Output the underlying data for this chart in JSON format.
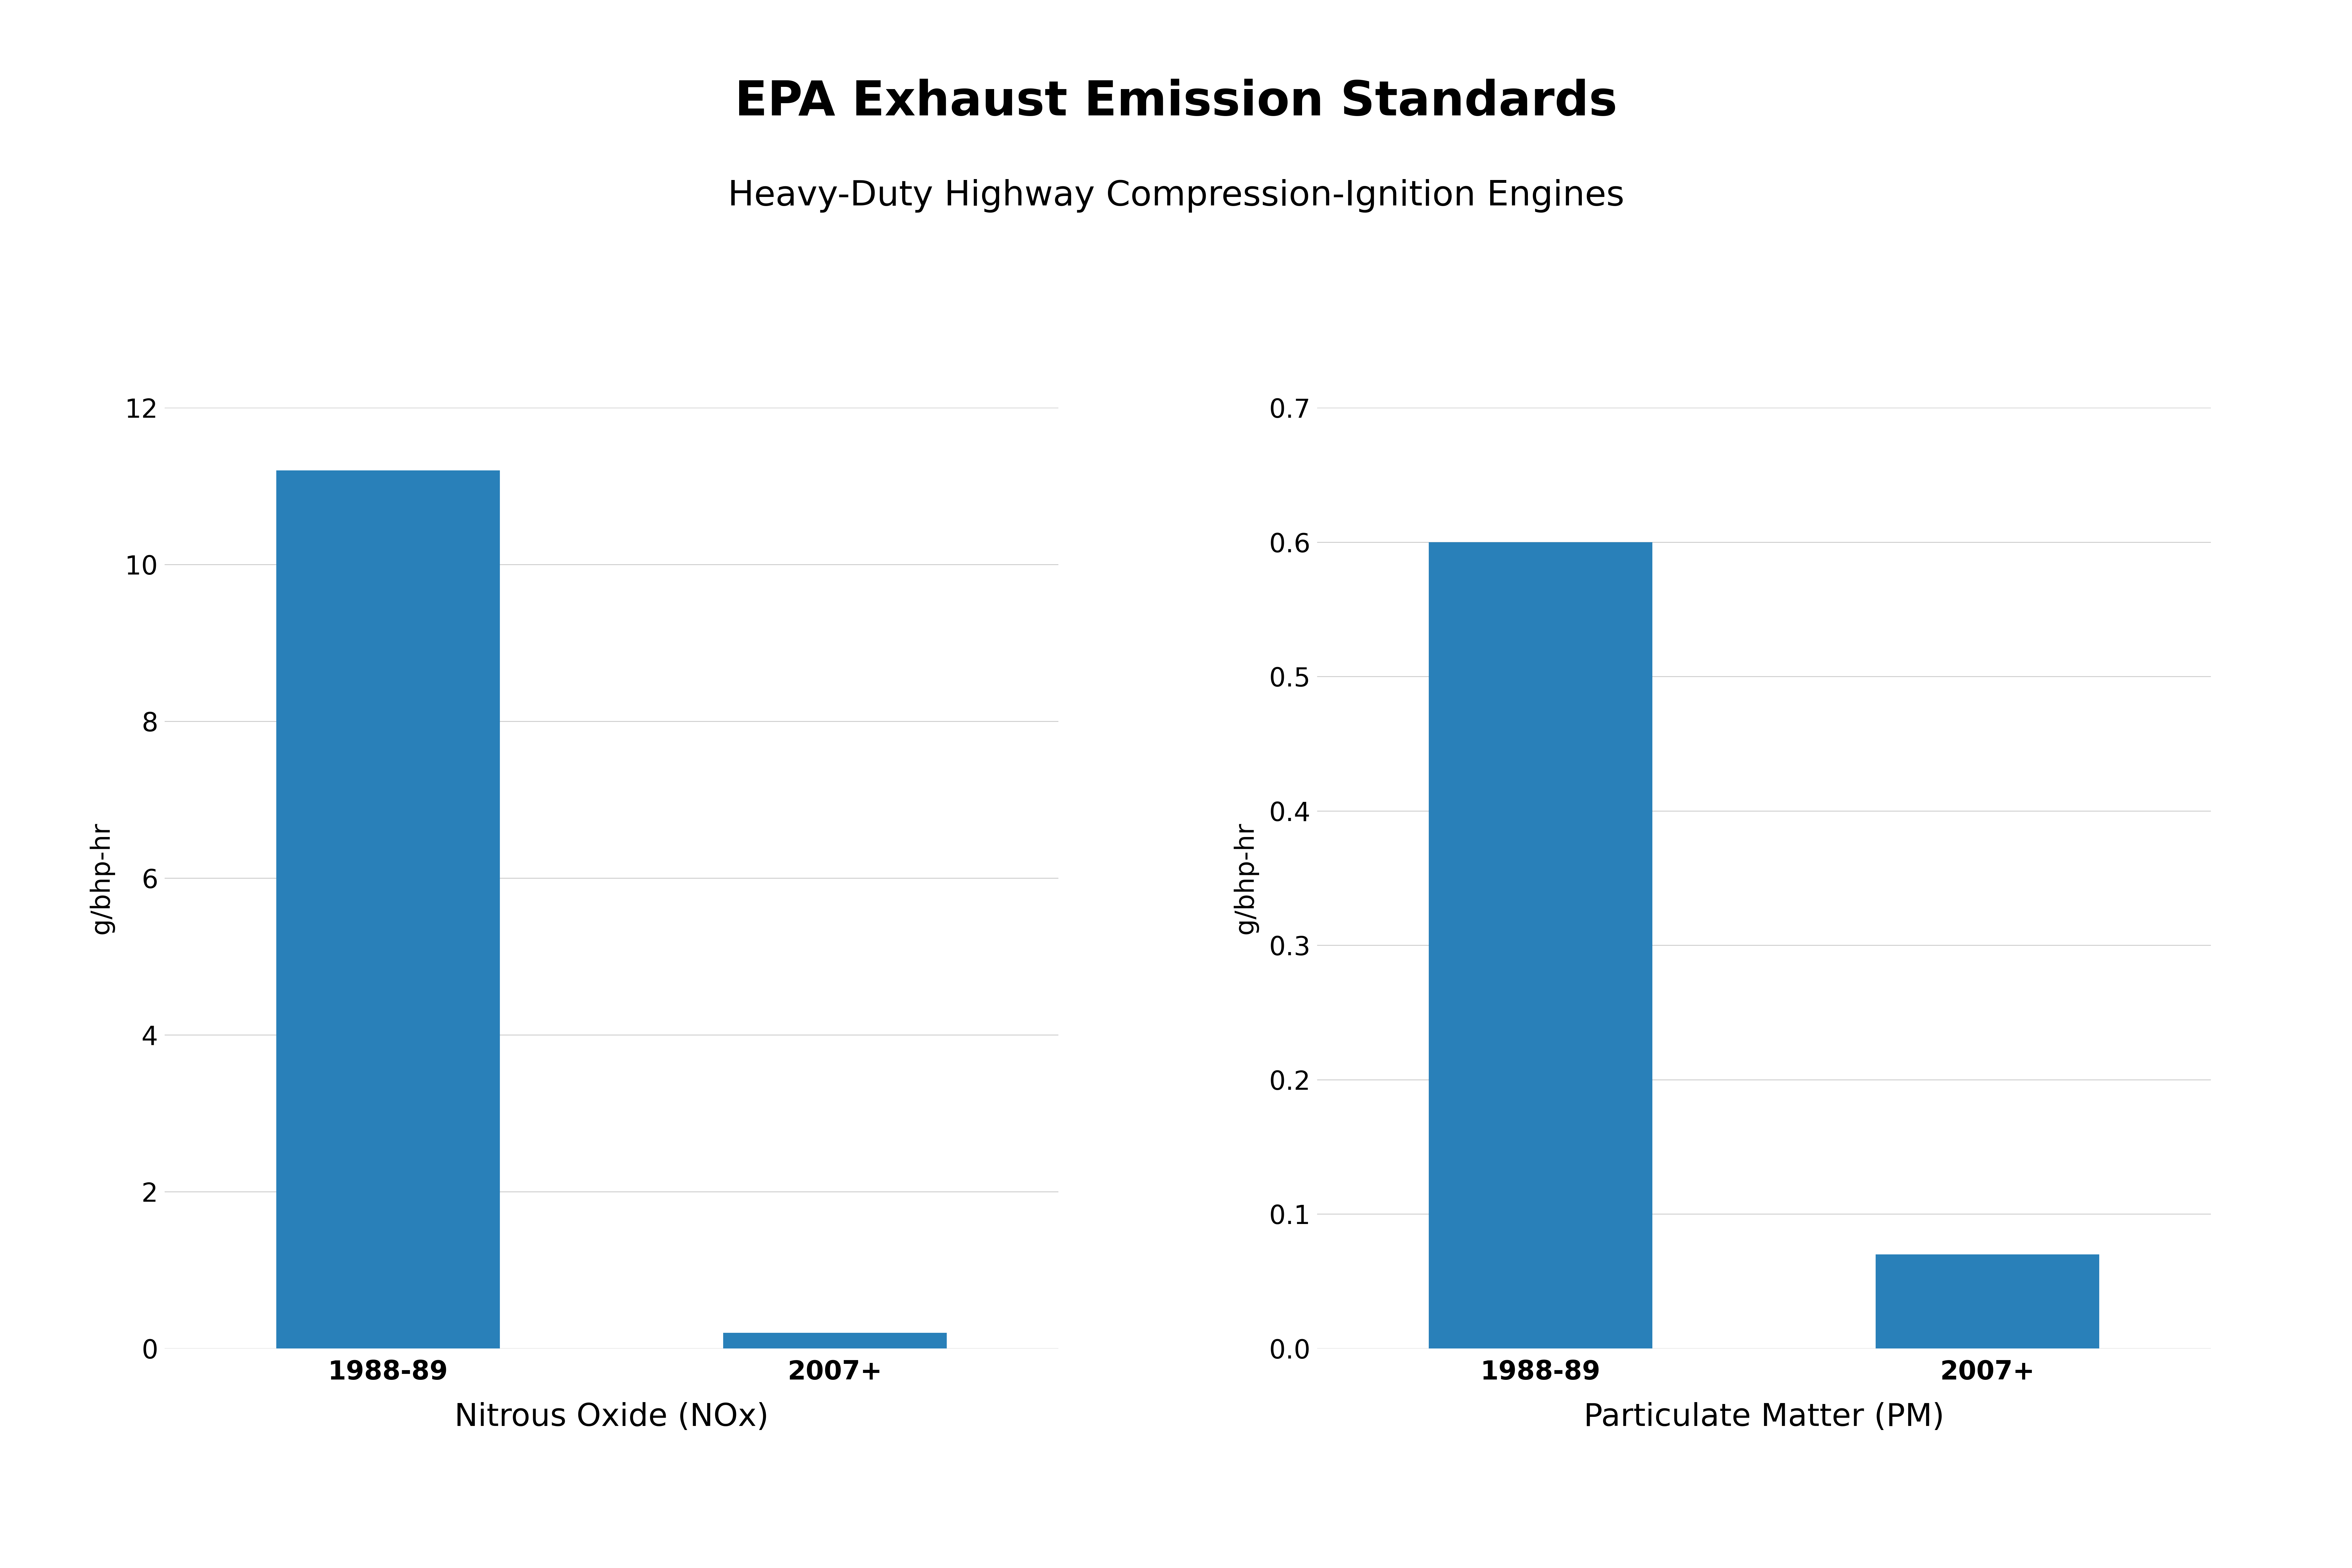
{
  "title": "EPA Exhaust Emission Standards",
  "subtitle": "Heavy-Duty Highway Compression-Ignition Engines",
  "background_color": "#ffffff",
  "bar_color": "#2980b9",
  "left_chart": {
    "categories": [
      "1988-89",
      "2007+"
    ],
    "values": [
      11.2,
      0.2
    ],
    "ylabel": "g/bhp-hr",
    "xlabel": "Nitrous Oxide (NOx)",
    "ylim": [
      0,
      12
    ],
    "yticks": [
      0,
      2,
      4,
      6,
      8,
      10,
      12
    ]
  },
  "right_chart": {
    "categories": [
      "1988-89",
      "2007+"
    ],
    "values": [
      0.6,
      0.07
    ],
    "ylabel": "g/bhp-hr",
    "xlabel": "Particulate Matter (PM)",
    "ylim": [
      0.0,
      0.7
    ],
    "yticks": [
      0.0,
      0.1,
      0.2,
      0.3,
      0.4,
      0.5,
      0.6,
      0.7
    ]
  },
  "title_fontsize": 110,
  "subtitle_fontsize": 80,
  "xlabel_fontsize": 72,
  "ylabel_fontsize": 60,
  "tick_fontsize": 60,
  "bar_width": 0.5,
  "grid_color": "#cccccc",
  "grid_linewidth": 2.0
}
